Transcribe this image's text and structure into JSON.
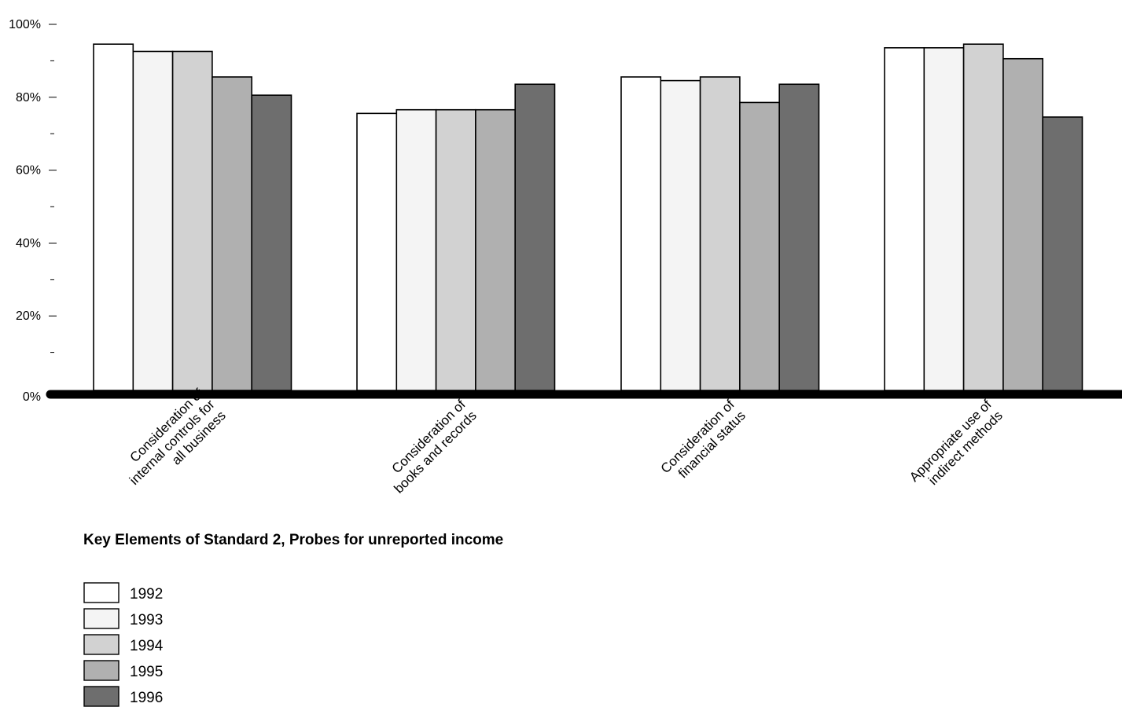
{
  "chart_data": {
    "type": "bar",
    "title": "Key Elements of Standard 2, Probes for unreported income",
    "xlabel": "",
    "ylabel": "",
    "ylim": [
      0,
      100
    ],
    "y_ticks": [
      {
        "value": 0,
        "label": "0%"
      },
      {
        "value": 20,
        "label": "20%"
      },
      {
        "value": 40,
        "label": "40%"
      },
      {
        "value": 60,
        "label": "60%"
      },
      {
        "value": 80,
        "label": "80%"
      },
      {
        "value": 100,
        "label": "100%"
      }
    ],
    "y_minor_ticks": [
      10,
      30,
      50,
      70,
      90
    ],
    "categories": [
      [
        "Consideration of",
        "internal controls for",
        "all business"
      ],
      [
        "Consideration of",
        "books and records"
      ],
      [
        "Consideration of",
        "financial status"
      ],
      [
        "Appropriate use of",
        "indirect methods"
      ]
    ],
    "series": [
      {
        "name": "1992",
        "color": "#ffffff",
        "values": [
          95,
          76,
          86,
          94
        ]
      },
      {
        "name": "1993",
        "color": "#f4f4f4",
        "values": [
          93,
          77,
          85,
          94
        ]
      },
      {
        "name": "1994",
        "color": "#d2d2d2",
        "values": [
          93,
          77,
          86,
          95
        ]
      },
      {
        "name": "1995",
        "color": "#b0b0b0",
        "values": [
          86,
          77,
          79,
          91
        ]
      },
      {
        "name": "1996",
        "color": "#6e6e6e",
        "values": [
          81,
          84,
          84,
          75
        ]
      }
    ],
    "legend": "bottom-left",
    "grid": false
  }
}
